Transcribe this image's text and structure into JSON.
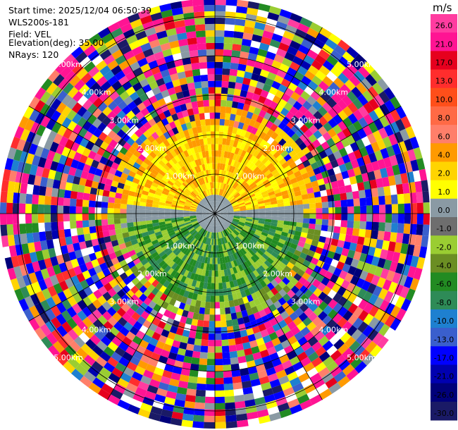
{
  "header": {
    "start_time": "Start time: 2025/12/04 06:50:39",
    "site": "WLS200s-181",
    "field": "Field: VEL",
    "elevation": "Elevation(deg): 35.00",
    "nrays": "NRays: 120"
  },
  "colorbar": {
    "unit": "m/s",
    "ticks": [
      "26.0",
      "21.0",
      "17.0",
      "13.0",
      "10.0",
      "8.0",
      "6.0",
      "4.0",
      "2.0",
      "1.0",
      "0.0",
      "-1.0",
      "-2.0",
      "-4.0",
      "-6.0",
      "-8.0",
      "-10.0",
      "-13.0",
      "-17.0",
      "-21.0",
      "-26.0",
      "-30.0"
    ],
    "colors": [
      "#ff3ca0",
      "#ff1493",
      "#e6001e",
      "#ff2d2d",
      "#ff4f1a",
      "#ff6a45",
      "#ff7f6a",
      "#ff9a00",
      "#ffd400",
      "#ffff00",
      "#8a9aa4",
      "#6e6e6e",
      "#9acd32",
      "#6b8e23",
      "#228b22",
      "#2e8b57",
      "#1e80d0",
      "#3a5fcd",
      "#0000ff",
      "#0000b0",
      "#00007a",
      "#1a1a66"
    ]
  },
  "chart_data": {
    "type": "heatmap",
    "title": "",
    "projection": "polar PPI",
    "field": "VEL",
    "units": "m/s",
    "nrays": 120,
    "elevation_deg": 35.0,
    "range_rings_label_text": [
      "1.00km",
      "2.00km",
      "3.00km",
      "4.00km",
      "5.00km"
    ],
    "ring_label_quadrants": [
      "north-west",
      "north-east",
      "south-west",
      "south-east"
    ],
    "inner_zone_km": 1.35,
    "inner_pattern": {
      "north": "yellow / orange (+1 to +6 m/s)",
      "south": "green (-1 to -8 m/s)",
      "center_band": "grey (0 m/s)"
    },
    "outer_zone": "noise (random values across full scale)",
    "max_range_km": 3.7,
    "grid": true,
    "colorbar_range": [
      -30.0,
      26.0
    ]
  }
}
